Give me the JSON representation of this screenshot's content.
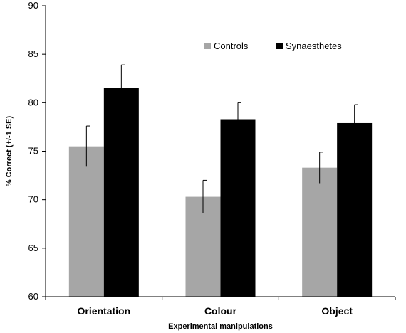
{
  "chart_data": {
    "type": "bar",
    "categories": [
      "Orientation",
      "Colour",
      "Object"
    ],
    "series": [
      {
        "name": "Controls",
        "values": [
          75.5,
          70.3,
          73.3
        ],
        "errors": [
          2.1,
          1.7,
          1.6
        ],
        "color": "#a6a6a6"
      },
      {
        "name": "Synaesthetes",
        "values": [
          81.5,
          78.3,
          77.9
        ],
        "errors": [
          2.4,
          1.7,
          1.9
        ],
        "color": "#000000"
      }
    ],
    "title": "",
    "xlabel": "Experimental manipulations",
    "ylabel": "% Correct (+/-1 SE)",
    "ylim": [
      60,
      90
    ],
    "yticks": [
      60,
      65,
      70,
      75,
      80,
      85,
      90
    ],
    "grid": false,
    "legend": "top-right"
  }
}
